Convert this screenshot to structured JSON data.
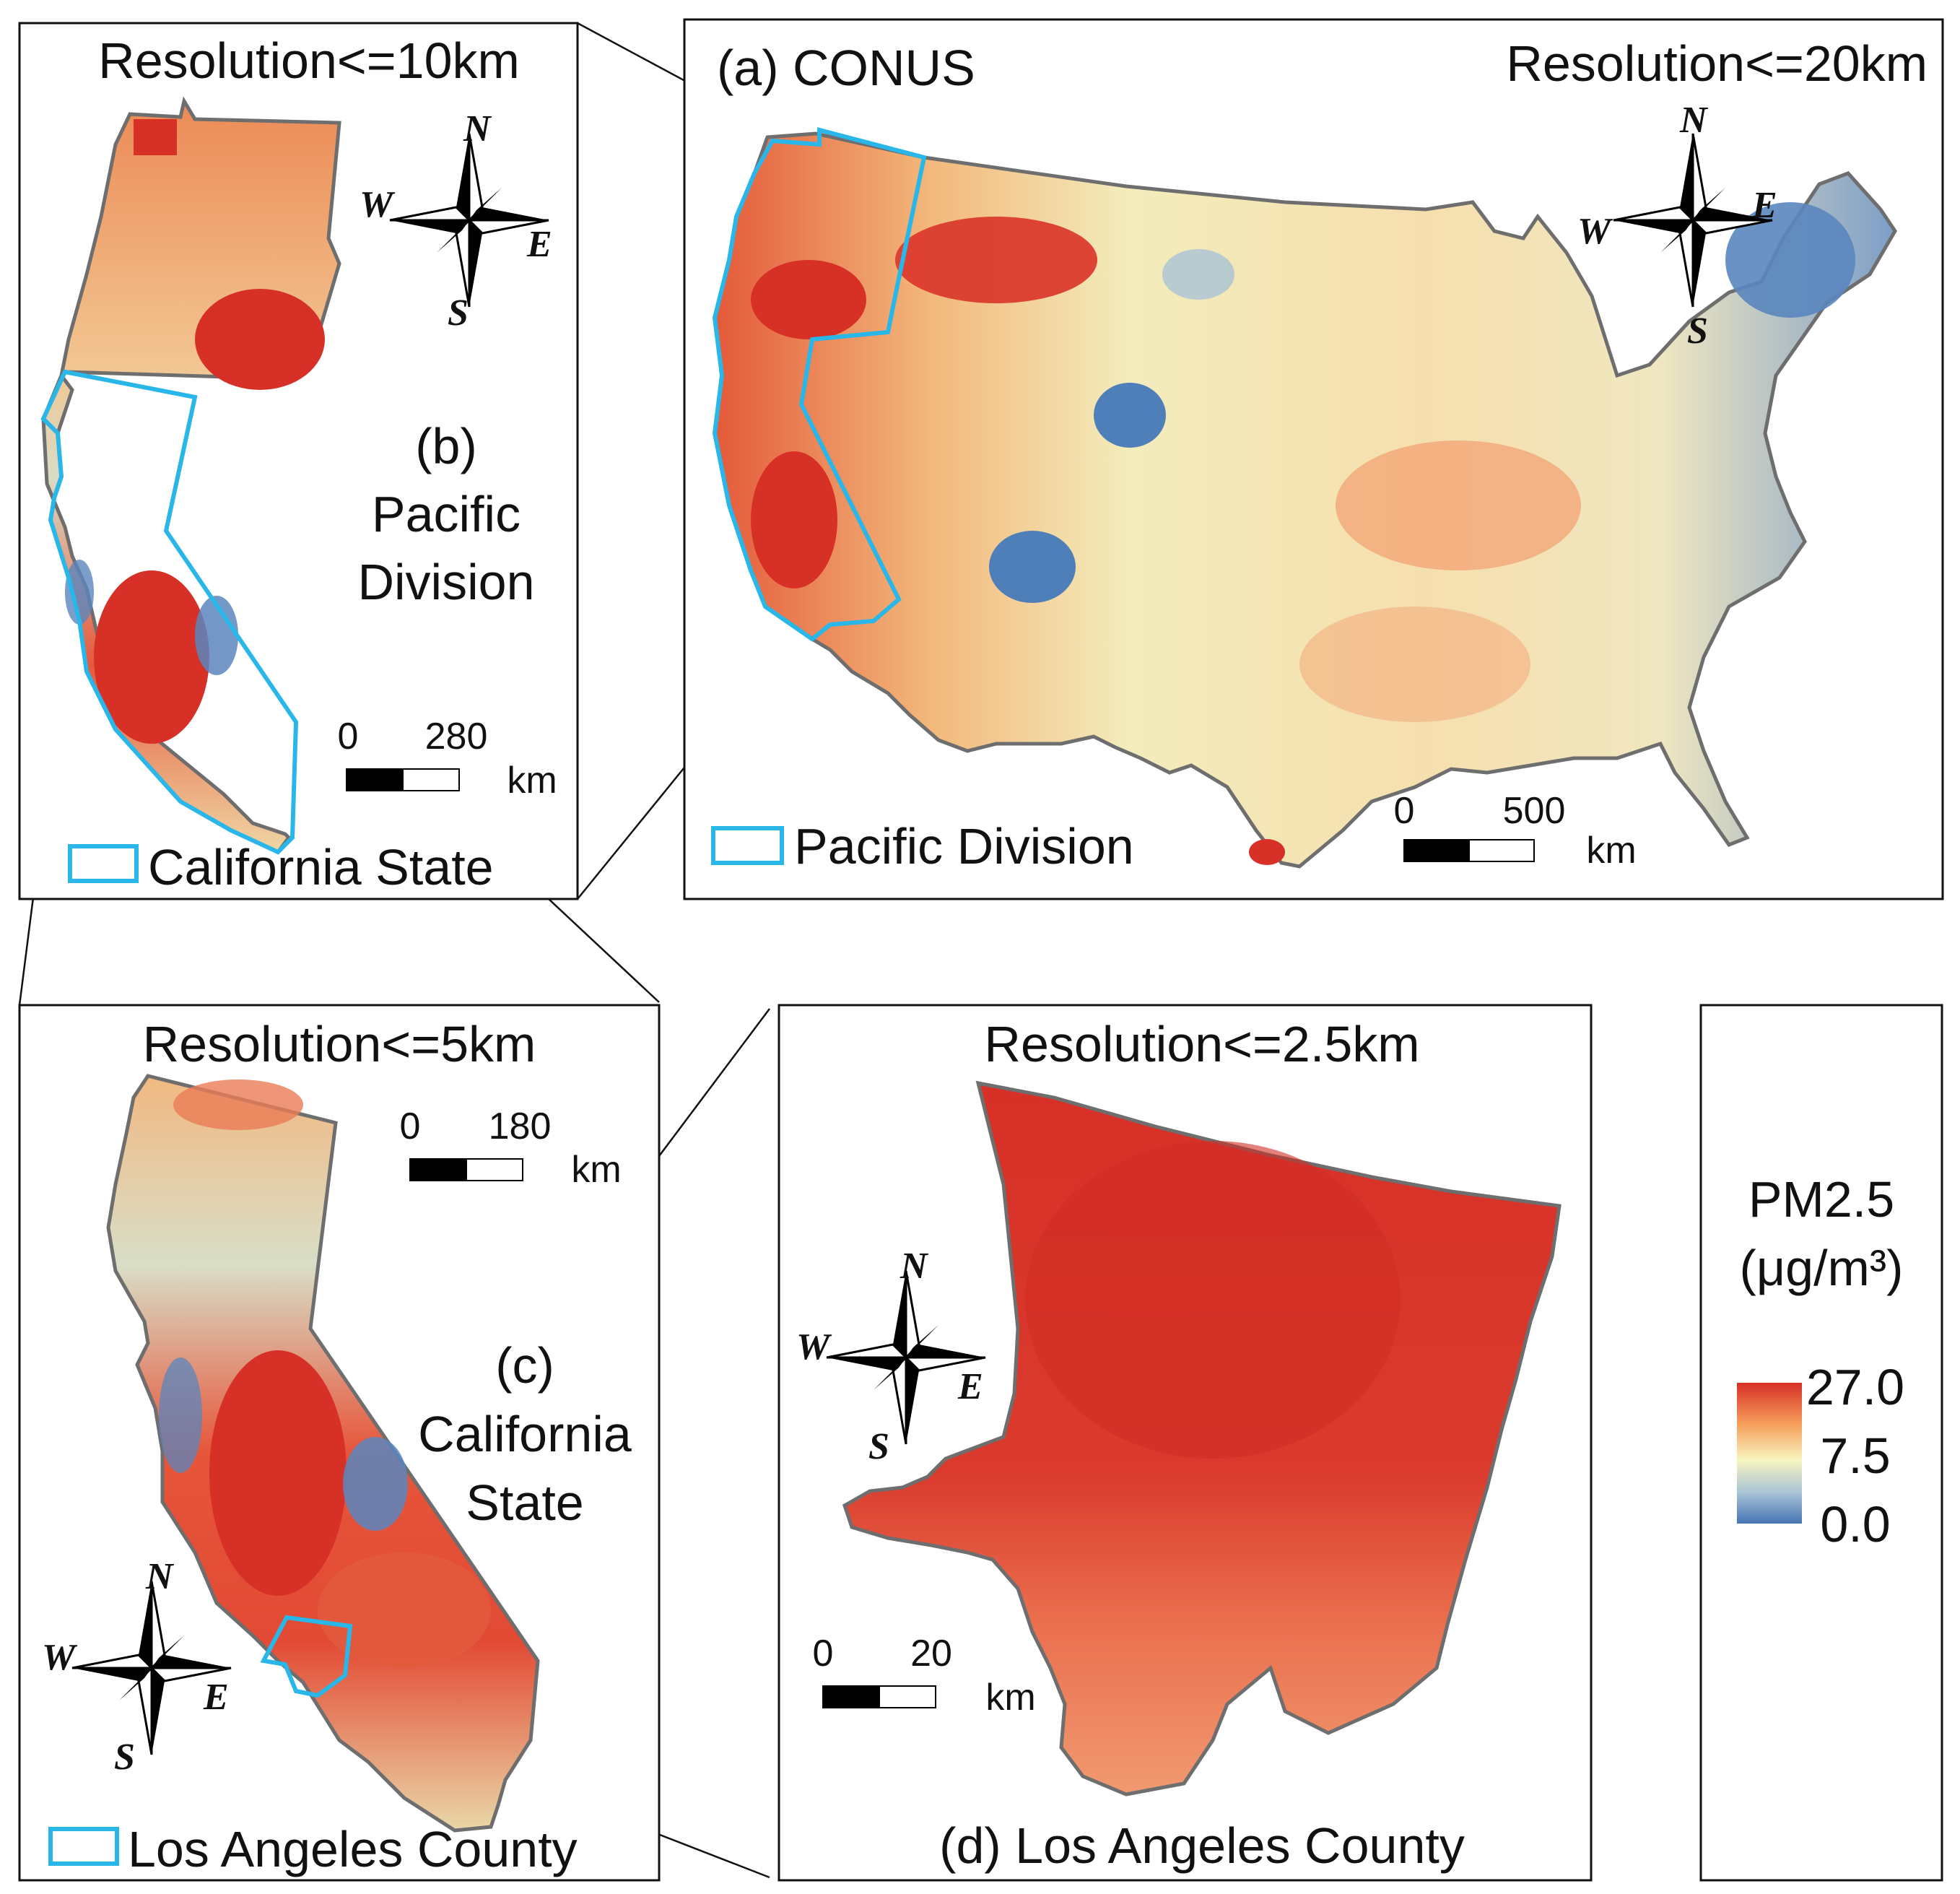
{
  "panels": {
    "conus": {
      "title": "(a) CONUS",
      "resolution": "Resolution<=20km",
      "legend_label": "Pacific Division",
      "scale": {
        "start": "0",
        "end": "500",
        "unit": "km"
      }
    },
    "pacific": {
      "title_line1": "(b)",
      "title_line2": "Pacific",
      "title_line3": "Division",
      "resolution": "Resolution<=10km",
      "legend_label": "California State",
      "scale": {
        "start": "0",
        "end": "280",
        "unit": "km"
      }
    },
    "california": {
      "title_line1": "(c)",
      "title_line2": "California",
      "title_line3": "State",
      "resolution": "Resolution<=5km",
      "legend_label": "Los Angeles County",
      "scale": {
        "start": "0",
        "end": "180",
        "unit": "km"
      }
    },
    "la": {
      "title": "(d) Los Angeles County",
      "resolution": "Resolution<=2.5km",
      "scale": {
        "start": "0",
        "end": "20",
        "unit": "km"
      }
    }
  },
  "compass": {
    "n": "N",
    "s": "S",
    "e": "E",
    "w": "W"
  },
  "colorbar": {
    "title_line1": "PM2.5",
    "title_line2": "(μg/m³)",
    "max_label": "27.0",
    "mid_label": "7.5",
    "min_label": "0.0",
    "colors": {
      "high": "#d73027",
      "mid": "#f7f5c0",
      "low": "#4575b4"
    }
  },
  "colors": {
    "outline": "#6e6e6e",
    "highlight": "#29b6e8"
  }
}
